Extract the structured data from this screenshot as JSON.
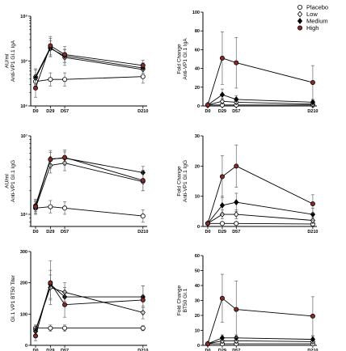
{
  "legend": {
    "position": "top-right",
    "entries": [
      {
        "name": "Placebo",
        "marker": "circle-open",
        "color": "#ffffff"
      },
      {
        "name": "Low",
        "marker": "diamond-open",
        "color": "#ffffff"
      },
      {
        "name": "Medium",
        "marker": "diamond-filled",
        "color": "#000000"
      },
      {
        "name": "High",
        "marker": "circle-filled",
        "color": "#8b2a2a"
      }
    ]
  },
  "chart_data": [
    {
      "type": "line",
      "scale": "log",
      "x_categories": [
        "D0",
        "D29",
        "D57",
        "D210"
      ],
      "x": [
        0,
        29,
        57,
        210
      ],
      "ylabel_lines": [
        "AU/ml",
        "Anti-VP1 GI.1 IgA"
      ],
      "yticks": [
        "10⁶",
        "10⁷",
        "10⁸"
      ],
      "ylim": [
        1000000,
        100000000
      ],
      "series": [
        {
          "name": "Placebo",
          "values": [
            3500000,
            3900000,
            3900000,
            4500000
          ],
          "err": [
            1.4,
            1.4,
            1.4,
            1.4
          ]
        },
        {
          "name": "Low",
          "values": [
            4500000,
            20000000,
            12000000,
            6500000
          ],
          "err": [
            1.5,
            1.6,
            1.5,
            1.3
          ]
        },
        {
          "name": "Medium",
          "values": [
            4200000,
            19000000,
            13000000,
            7000000
          ],
          "err": [
            1.5,
            1.5,
            1.4,
            1.3
          ]
        },
        {
          "name": "High",
          "values": [
            2500000,
            22000000,
            14000000,
            8000000
          ],
          "err": [
            1.6,
            1.6,
            1.5,
            1.3
          ]
        }
      ]
    },
    {
      "type": "line",
      "scale": "linear",
      "x_categories": [
        "D0",
        "D29",
        "D57",
        "D210"
      ],
      "x": [
        0,
        29,
        57,
        210
      ],
      "ylabel_lines": [
        "Fold Change",
        "Anti-VP1 GI.1 IgA"
      ],
      "yticks": [
        "0",
        "20",
        "40",
        "60",
        "80",
        "100"
      ],
      "ylim": [
        0,
        100
      ],
      "series": [
        {
          "name": "Placebo",
          "values": [
            1,
            1,
            1,
            1
          ],
          "err": [
            0.3,
            0.3,
            0.3,
            0.3
          ]
        },
        {
          "name": "Low",
          "values": [
            1,
            5,
            4,
            2
          ],
          "err": [
            0.5,
            3,
            2,
            1
          ]
        },
        {
          "name": "Medium",
          "values": [
            1,
            12,
            7,
            4
          ],
          "err": [
            0.5,
            6,
            4,
            2
          ]
        },
        {
          "name": "High",
          "values": [
            1,
            51,
            46,
            25
          ],
          "err": [
            0.5,
            28,
            27,
            18
          ]
        }
      ]
    },
    {
      "type": "line",
      "scale": "log",
      "x_categories": [
        "D0",
        "D29",
        "D57",
        "D210"
      ],
      "x": [
        0,
        29,
        57,
        210
      ],
      "ylabel_lines": [
        "AU/ml",
        "Anti-VP1 GI.1 IgG"
      ],
      "yticks": [
        "10⁶",
        "10⁷"
      ],
      "ylim": [
        700000,
        10000000
      ],
      "series": [
        {
          "name": "Placebo",
          "values": [
            1200000,
            1250000,
            1200000,
            950000
          ],
          "err": [
            1.2,
            1.2,
            1.2,
            1.2
          ]
        },
        {
          "name": "Low",
          "values": [
            1200000,
            4200000,
            4500000,
            2600000
          ],
          "err": [
            1.2,
            1.25,
            1.25,
            1.3
          ]
        },
        {
          "name": "Medium",
          "values": [
            1300000,
            5100000,
            5200000,
            3400000
          ],
          "err": [
            1.2,
            1.2,
            1.2,
            1.2
          ]
        },
        {
          "name": "High",
          "values": [
            1250000,
            5000000,
            5300000,
            2700000
          ],
          "err": [
            1.2,
            1.3,
            1.25,
            1.35
          ]
        }
      ]
    },
    {
      "type": "line",
      "scale": "linear",
      "x_categories": [
        "D0",
        "D29",
        "D57",
        "D210"
      ],
      "x": [
        0,
        29,
        57,
        210
      ],
      "ylabel_lines": [
        "Fold Change",
        "Anti-VP1 GI.1 IgG"
      ],
      "yticks": [
        "0",
        "10",
        "20",
        "30"
      ],
      "ylim": [
        0,
        30
      ],
      "series": [
        {
          "name": "Placebo",
          "values": [
            1,
            1,
            1,
            0.8
          ],
          "err": [
            0.2,
            0.2,
            0.2,
            0.2
          ]
        },
        {
          "name": "Low",
          "values": [
            1,
            4,
            4,
            2
          ],
          "err": [
            0.3,
            1.5,
            1.5,
            1
          ]
        },
        {
          "name": "Medium",
          "values": [
            1,
            7,
            8,
            4
          ],
          "err": [
            0.3,
            3,
            3,
            2
          ]
        },
        {
          "name": "High",
          "values": [
            1,
            16.5,
            20,
            7.5
          ],
          "err": [
            0.3,
            7,
            7,
            3
          ]
        }
      ]
    },
    {
      "type": "line",
      "scale": "linear",
      "x_categories": [
        "D0",
        "D29",
        "D57",
        "D210"
      ],
      "x": [
        0,
        29,
        57,
        210
      ],
      "ylabel_lines": [
        "GI.1 VP1 BT50 Titer"
      ],
      "yticks": [
        "0",
        "100",
        "200",
        "300"
      ],
      "ylim": [
        0,
        300
      ],
      "series": [
        {
          "name": "Placebo",
          "values": [
            55,
            55,
            55,
            55
          ],
          "err": [
            10,
            10,
            10,
            8
          ]
        },
        {
          "name": "Low",
          "values": [
            50,
            185,
            170,
            105
          ],
          "err": [
            15,
            40,
            30,
            20
          ]
        },
        {
          "name": "Medium",
          "values": [
            45,
            195,
            155,
            155
          ],
          "err": [
            15,
            45,
            30,
            35
          ]
        },
        {
          "name": "High",
          "values": [
            30,
            200,
            130,
            145
          ],
          "err": [
            15,
            70,
            40,
            45
          ]
        }
      ]
    },
    {
      "type": "line",
      "scale": "linear",
      "x_categories": [
        "D0",
        "D29",
        "D57",
        "D210"
      ],
      "x": [
        0,
        29,
        57,
        210
      ],
      "ylabel_lines": [
        "Fold Change",
        "BT50 GI.1"
      ],
      "yticks": [
        "0",
        "10",
        "20",
        "30",
        "40",
        "50",
        "60"
      ],
      "ylim": [
        0,
        60
      ],
      "series": [
        {
          "name": "Placebo",
          "values": [
            1,
            1,
            1,
            1
          ],
          "err": [
            0.2,
            0.2,
            0.2,
            0.2
          ]
        },
        {
          "name": "Low",
          "values": [
            1,
            3,
            3,
            2.5
          ],
          "err": [
            0.3,
            1.5,
            1.5,
            1
          ]
        },
        {
          "name": "Medium",
          "values": [
            1,
            5,
            5,
            4
          ],
          "err": [
            0.3,
            2,
            2,
            2
          ]
        },
        {
          "name": "High",
          "values": [
            1,
            31.5,
            24,
            19.5
          ],
          "err": [
            0.3,
            16,
            19,
            13
          ]
        }
      ]
    }
  ]
}
